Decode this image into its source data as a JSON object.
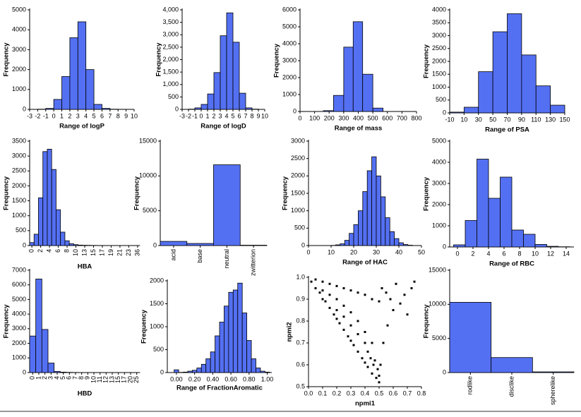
{
  "chart_data": [
    {
      "type": "histogram",
      "xlabel": "Range of logP",
      "ylabel": "Frequency",
      "color": "#5470f2",
      "bins": [
        -2,
        -1,
        0,
        1,
        2,
        3,
        4,
        5,
        6,
        7,
        8,
        9
      ],
      "values": [
        10,
        50,
        500,
        1650,
        3600,
        4400,
        2000,
        250,
        50,
        10,
        5
      ],
      "xlim": [
        -3,
        10
      ],
      "xticks": [
        -3,
        -2,
        -1,
        0,
        1,
        2,
        3,
        4,
        5,
        6,
        7,
        8,
        9,
        10
      ],
      "ylim": [
        0,
        5000
      ],
      "yticks": [
        0,
        1000,
        2000,
        3000,
        4000,
        5000
      ]
    },
    {
      "type": "histogram",
      "xlabel": "Range of logD",
      "ylabel": "Frequency",
      "color": "#5470f2",
      "bins": [
        -2,
        -1,
        0,
        1,
        2,
        3,
        4,
        5,
        6,
        7,
        8,
        9
      ],
      "values": [
        10,
        60,
        200,
        620,
        1480,
        2960,
        3880,
        2700,
        650,
        60,
        10
      ],
      "xlim": [
        -3,
        10
      ],
      "xticks": [
        -3,
        -2,
        -1,
        0,
        1,
        2,
        3,
        4,
        5,
        6,
        7,
        8,
        9,
        10
      ],
      "ylim": [
        0,
        4000
      ],
      "yticks": [
        0,
        500,
        {
          "value": 1000,
          "label": "1,000"
        },
        {
          "value": 1500,
          "label": "1,500"
        },
        {
          "value": 2000,
          "label": "2,000"
        },
        {
          "value": 2500,
          "label": "2,500"
        },
        {
          "value": 3000,
          "label": "3,000"
        },
        {
          "value": 3500,
          "label": "3,500"
        },
        {
          "value": 4000,
          "label": "4,000"
        }
      ]
    },
    {
      "type": "histogram",
      "xlabel": "Range of mass",
      "ylabel": "Frequency",
      "color": "#5470f2",
      "bins": [
        160,
        230,
        300,
        365,
        430,
        500,
        570
      ],
      "values": [
        50,
        950,
        3800,
        5300,
        2200,
        200
      ],
      "xlim": [
        0,
        800
      ],
      "xticks": [
        0,
        100,
        200,
        300,
        400,
        500,
        600,
        700,
        800
      ],
      "ylim": [
        0,
        6000
      ],
      "yticks": [
        0,
        1000,
        2000,
        3000,
        4000,
        5000,
        6000
      ]
    },
    {
      "type": "histogram",
      "xlabel": "Range of PSA",
      "ylabel": "Frequency",
      "color": "#5470f2",
      "bins": [
        -10,
        10,
        30,
        50,
        70,
        90,
        110,
        130,
        150
      ],
      "values": [
        30,
        220,
        1600,
        3150,
        3850,
        2250,
        1050,
        300
      ],
      "xlim": [
        -10,
        150
      ],
      "xticks": [
        -10,
        10,
        30,
        50,
        70,
        90,
        110,
        130,
        150
      ],
      "ylim": [
        0,
        4000
      ],
      "yticks": [
        0,
        500,
        1000,
        1500,
        2000,
        2500,
        3000,
        3500,
        4000
      ]
    },
    {
      "type": "bar",
      "xlabel": "HBA",
      "ylabel": "Frequency",
      "color": "#5470f2",
      "categories": [
        "0",
        null,
        "2",
        null,
        "4",
        null,
        "6",
        null,
        "8",
        null,
        "10",
        null,
        "13",
        null,
        "15",
        null,
        "17",
        null,
        "19",
        null,
        "21",
        null,
        "23",
        null,
        "36"
      ],
      "values": [
        100,
        380,
        1600,
        3150,
        3230,
        2550,
        1200,
        450,
        160,
        60,
        30,
        15,
        10,
        8,
        5,
        4,
        3,
        2,
        2,
        1,
        1,
        1,
        1,
        1,
        1
      ],
      "ylim": [
        0,
        3500
      ],
      "yticks": [
        0,
        500,
        1000,
        1500,
        2000,
        2500,
        3000,
        3500
      ]
    },
    {
      "type": "bar",
      "ylabel": "Frequency",
      "color": "#5470f2",
      "categories": [
        "acid",
        "base",
        "neutral",
        "zwitterion"
      ],
      "values": [
        600,
        300,
        11600,
        50
      ],
      "ylim": [
        0,
        15000
      ],
      "yticks": [
        0,
        5000,
        10000,
        15000
      ]
    },
    {
      "type": "histogram",
      "xlabel": "Range of HAC",
      "ylabel": "Frequency",
      "color": "#5470f2",
      "bins": [
        10,
        12,
        14,
        16,
        18,
        20,
        22,
        24,
        26,
        28,
        30,
        32,
        34,
        36,
        38,
        40,
        42,
        44,
        46
      ],
      "values": [
        5,
        20,
        50,
        150,
        350,
        600,
        1000,
        1550,
        2150,
        2550,
        2000,
        1400,
        800,
        400,
        200,
        80,
        30,
        10
      ],
      "xlim": [
        0,
        50
      ],
      "xticks": [
        0,
        10,
        20,
        30,
        40,
        50
      ],
      "ylim": [
        0,
        3000
      ],
      "yticks": [
        0,
        500,
        1000,
        1500,
        2000,
        2500,
        3000
      ]
    },
    {
      "type": "histogram",
      "xlabel": "Range of RBC",
      "ylabel": "Frequency",
      "color": "#5470f2",
      "bins": [
        -0.5,
        1,
        2.5,
        4,
        5.5,
        7,
        8.5,
        10,
        11.5,
        13,
        14.5
      ],
      "values": [
        100,
        1250,
        4150,
        2300,
        3300,
        800,
        600,
        120,
        30,
        10
      ],
      "xlim": [
        -1,
        15
      ],
      "xticks": [
        0,
        2,
        4,
        6,
        8,
        10,
        12,
        14
      ],
      "ylim": [
        0,
        5000
      ],
      "yticks": [
        0,
        1000,
        2000,
        3000,
        4000,
        5000
      ]
    },
    {
      "type": "bar",
      "xlabel": "HBD",
      "ylabel": "Frequency",
      "color": "#5470f2",
      "categories": [
        "0",
        "1",
        "2",
        "3",
        "4",
        "5",
        "6",
        "7",
        "8",
        "9",
        "10",
        "11",
        "12",
        "13",
        "15",
        "17",
        "20",
        "25"
      ],
      "values": [
        2500,
        6400,
        2950,
        650,
        80,
        30,
        15,
        8,
        5,
        3,
        2,
        1,
        1,
        1,
        1,
        1,
        1,
        1
      ],
      "ylim": [
        0,
        7000
      ],
      "yticks": [
        0,
        1000,
        2000,
        3000,
        4000,
        5000,
        6000,
        7000
      ]
    },
    {
      "type": "histogram",
      "xlabel": "Range of FractionAromatic",
      "ylabel": "Frequency",
      "color": "#5470f2",
      "bins": [
        -0.025,
        0.025,
        0.075,
        0.125,
        0.175,
        0.225,
        0.275,
        0.325,
        0.375,
        0.425,
        0.475,
        0.525,
        0.575,
        0.625,
        0.675,
        0.725,
        0.775,
        0.825,
        0.875,
        0.925,
        0.975,
        1.025
      ],
      "values": [
        60,
        5,
        10,
        30,
        50,
        100,
        180,
        300,
        450,
        800,
        1100,
        1450,
        1750,
        1800,
        1950,
        1300,
        700,
        300,
        100,
        30,
        10
      ],
      "xlim": [
        -0.1,
        1.05
      ],
      "xticks": [
        {
          "value": 0,
          "label": "0.00"
        },
        {
          "value": 0.2,
          "label": "0.20"
        },
        {
          "value": 0.4,
          "label": "0.40"
        },
        {
          "value": 0.6,
          "label": "0.60"
        },
        {
          "value": 0.8,
          "label": "0.80"
        },
        {
          "value": 1,
          "label": "1.00"
        }
      ],
      "ylim": [
        0,
        2000
      ],
      "yticks": [
        0,
        500,
        1000,
        1500,
        2000
      ]
    },
    {
      "type": "scatter",
      "xlabel": "npmi1",
      "ylabel": "npmi2",
      "color": "#000000",
      "x": [
        0.02,
        0.05,
        0.08,
        0.1,
        0.12,
        0.15,
        0.18,
        0.2,
        0.22,
        0.25,
        0.28,
        0.3,
        0.32,
        0.35,
        0.38,
        0.4,
        0.42,
        0.45,
        0.48,
        0.5,
        0.05,
        0.1,
        0.15,
        0.2,
        0.25,
        0.3,
        0.35,
        0.4,
        0.45,
        0.5,
        0.1,
        0.15,
        0.2,
        0.25,
        0.3,
        0.35,
        0.4,
        0.45,
        0.47,
        0.49,
        0.2,
        0.25,
        0.3,
        0.35,
        0.4,
        0.42,
        0.44,
        0.46,
        0.52,
        0.55,
        0.58,
        0.6,
        0.62,
        0.65,
        0.68,
        0.7,
        0.73,
        0.75,
        0.56,
        0.53,
        0.51,
        0.5
      ],
      "y": [
        0.98,
        0.95,
        0.93,
        0.9,
        0.89,
        0.86,
        0.83,
        0.81,
        0.79,
        0.76,
        0.73,
        0.71,
        0.69,
        0.66,
        0.63,
        0.61,
        0.59,
        0.56,
        0.54,
        0.52,
        0.99,
        0.98,
        0.97,
        0.96,
        0.95,
        0.94,
        0.93,
        0.92,
        0.9,
        0.89,
        0.94,
        0.92,
        0.9,
        0.87,
        0.84,
        0.8,
        0.75,
        0.7,
        0.62,
        0.58,
        0.85,
        0.82,
        0.78,
        0.74,
        0.7,
        0.66,
        0.63,
        0.6,
        0.95,
        0.93,
        0.9,
        0.85,
        0.97,
        0.88,
        0.92,
        0.83,
        0.95,
        0.98,
        0.78,
        0.7,
        0.6,
        0.55
      ],
      "xlim": [
        0,
        0.8
      ],
      "xticks": [
        {
          "value": 0,
          "label": "0.0"
        },
        0.1,
        0.2,
        0.3,
        0.4,
        0.5,
        0.6,
        0.7,
        0.8
      ],
      "ylim": [
        0.5,
        1
      ],
      "yticks": [
        0.5,
        0.6,
        0.7,
        0.8,
        0.9,
        {
          "value": 1,
          "label": "1.0"
        }
      ]
    },
    {
      "type": "bar",
      "ylabel": "Frequency",
      "color": "#5470f2",
      "categories": [
        "rodlike",
        "disclike",
        "spherelike"
      ],
      "values": [
        10300,
        2200,
        100
      ],
      "ylim": [
        0,
        15000
      ],
      "yticks": [
        0,
        5000,
        10000,
        15000
      ]
    }
  ]
}
